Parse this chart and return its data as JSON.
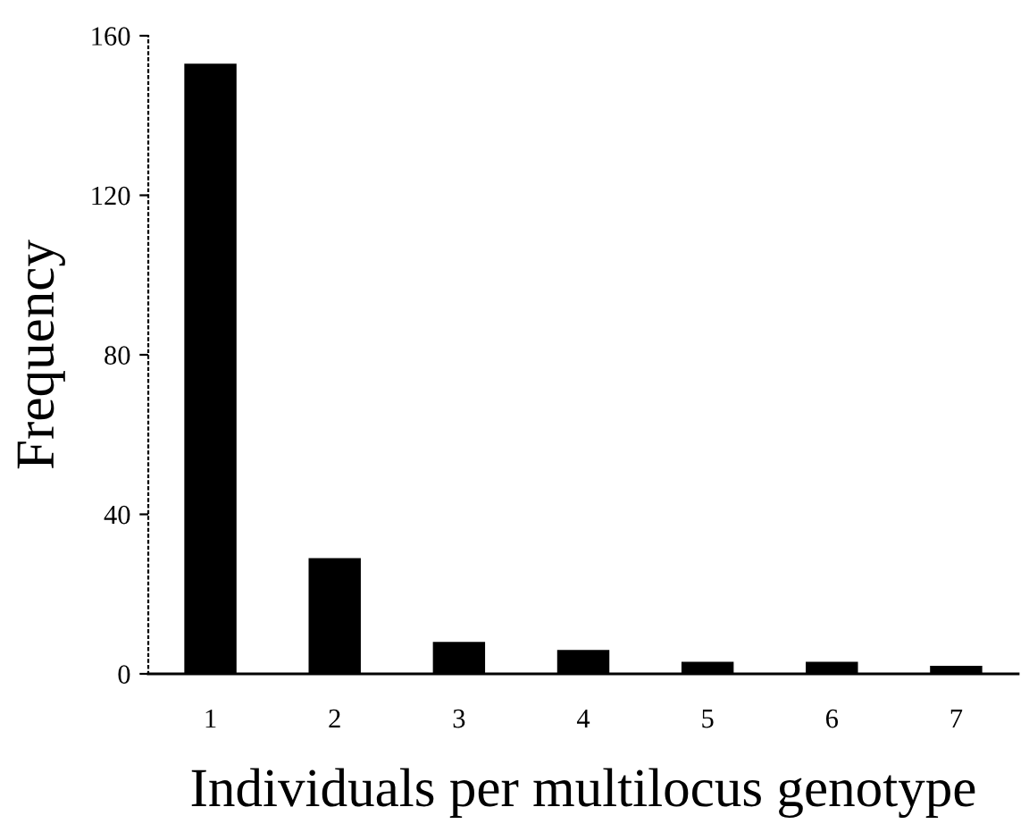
{
  "chart_data": {
    "type": "bar",
    "xlabel": "Individuals per multilocus genotype",
    "ylabel": "Frequency",
    "categories": [
      "1",
      "2",
      "3",
      "4",
      "5",
      "6",
      "7"
    ],
    "values": [
      153,
      29,
      8,
      6,
      3,
      3,
      2
    ],
    "color": "#000000",
    "ylim": [
      0,
      160
    ],
    "yticks": [
      0,
      40,
      80,
      120,
      160
    ],
    "grid": false
  }
}
